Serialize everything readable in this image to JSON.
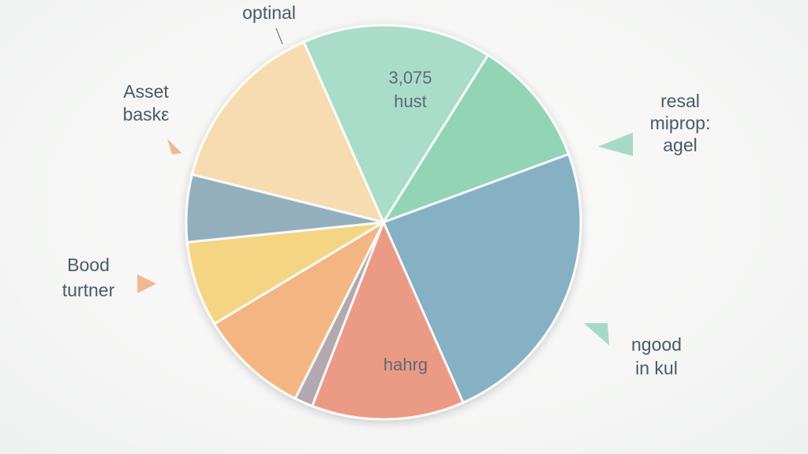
{
  "chart_data": {
    "type": "pie",
    "title": "",
    "colors": {
      "tan": "#f6dcb0",
      "mint": "#a9dcc9",
      "green": "#93d3b6",
      "steel_blue": "#86b1c4",
      "coral": "#eb9a86",
      "grey_mauve": "#b2a8ae",
      "orange": "#f3b683",
      "yellow": "#f4d584",
      "slate": "#93aebd",
      "pointer_teal": "#9ed5c3",
      "pointer_orange": "#f0b08a"
    },
    "slices": [
      {
        "label": "3,075 hust",
        "value": 14.5,
        "color_key": "tan",
        "label_lines": [
          "3,075",
          "hust"
        ]
      },
      {
        "label": "resal miprop: agel",
        "value": 15.5,
        "color_key": "mint",
        "label_lines": [
          "resal",
          "miprop:",
          "agel"
        ]
      },
      {
        "label": "ngood in kul",
        "value": 10.5,
        "color_key": "green",
        "label_lines": [
          "ngood",
          "in kul"
        ]
      },
      {
        "label": "hahrg",
        "value": 24.0,
        "color_key": "steel_blue",
        "label_lines": [
          "hahrg"
        ]
      },
      {
        "label": "Bood turtner",
        "value": 12.5,
        "color_key": "coral",
        "label_lines": [
          "Bood",
          "turtner"
        ]
      },
      {
        "label": "",
        "value": 1.5,
        "color_key": "grey_mauve",
        "label_lines": []
      },
      {
        "label": "",
        "value": 9.0,
        "color_key": "orange",
        "label_lines": []
      },
      {
        "label": "Asset baskε",
        "value": 7.0,
        "color_key": "yellow",
        "label_lines": [
          "Asset",
          "baskε"
        ]
      },
      {
        "label": "optinal",
        "value": 5.5,
        "color_key": "slate",
        "label_lines": [
          "optinal"
        ]
      }
    ],
    "legend": "none"
  }
}
